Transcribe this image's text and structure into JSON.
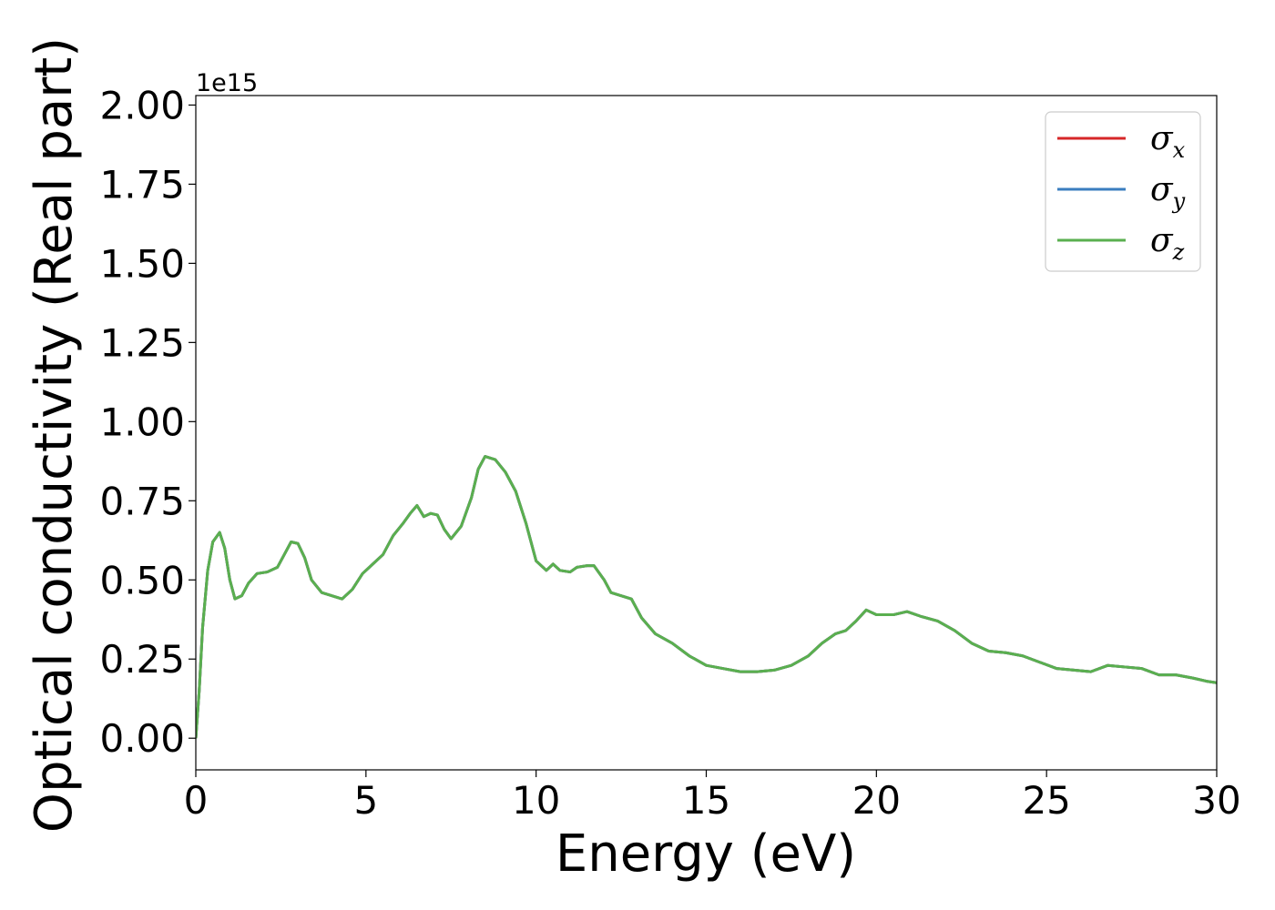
{
  "chart_data": {
    "type": "line",
    "xlabel": "Energy (eV)",
    "ylabel": "Optical conductivity (Real part)",
    "y_offset_label": "1e15",
    "xlim": [
      0,
      30
    ],
    "ylim": [
      -0.1,
      2.03
    ],
    "x_ticks": [
      0,
      5,
      10,
      15,
      20,
      25,
      30
    ],
    "x_tick_labels": [
      "0",
      "5",
      "10",
      "15",
      "20",
      "25",
      "30"
    ],
    "y_ticks": [
      0.0,
      0.25,
      0.5,
      0.75,
      1.0,
      1.25,
      1.5,
      1.75,
      2.0
    ],
    "y_tick_labels": [
      "0.00",
      "0.25",
      "0.50",
      "0.75",
      "1.00",
      "1.25",
      "1.50",
      "1.75",
      "2.00"
    ],
    "grid": false,
    "legend_position": "top-right",
    "series": [
      {
        "name": "σx",
        "label_base": "σ",
        "label_sub": "x",
        "color": "#d62728",
        "x": [
          0.0,
          0.1,
          0.2,
          0.35,
          0.5,
          0.7,
          0.85,
          1.0,
          1.15,
          1.35,
          1.55,
          1.8,
          2.1,
          2.4,
          2.6,
          2.8,
          3.0,
          3.2,
          3.4,
          3.7,
          4.0,
          4.3,
          4.6,
          4.9,
          5.2,
          5.5,
          5.8,
          6.1,
          6.3,
          6.5,
          6.7,
          6.9,
          7.1,
          7.3,
          7.5,
          7.8,
          8.1,
          8.3,
          8.5,
          8.8,
          9.1,
          9.4,
          9.7,
          10.0,
          10.3,
          10.5,
          10.7,
          11.0,
          11.2,
          11.5,
          11.7,
          12.0,
          12.2,
          12.5,
          12.8,
          13.1,
          13.5,
          14.0,
          14.5,
          15.0,
          15.5,
          16.0,
          16.5,
          17.0,
          17.5,
          18.0,
          18.4,
          18.8,
          19.1,
          19.4,
          19.7,
          20.0,
          20.5,
          20.9,
          21.3,
          21.8,
          22.3,
          22.8,
          23.3,
          23.8,
          24.3,
          24.8,
          25.3,
          25.8,
          26.3,
          26.8,
          27.3,
          27.8,
          28.3,
          28.8,
          29.3,
          29.7,
          30.0
        ],
        "values": [
          0.0,
          0.15,
          0.35,
          0.53,
          0.62,
          0.65,
          0.6,
          0.5,
          0.44,
          0.45,
          0.49,
          0.52,
          0.525,
          0.54,
          0.58,
          0.62,
          0.615,
          0.57,
          0.5,
          0.46,
          0.45,
          0.44,
          0.47,
          0.52,
          0.55,
          0.58,
          0.64,
          0.68,
          0.71,
          0.735,
          0.7,
          0.71,
          0.705,
          0.66,
          0.63,
          0.67,
          0.76,
          0.85,
          0.89,
          0.88,
          0.84,
          0.78,
          0.68,
          0.56,
          0.53,
          0.55,
          0.53,
          0.525,
          0.54,
          0.545,
          0.545,
          0.5,
          0.46,
          0.45,
          0.44,
          0.38,
          0.33,
          0.3,
          0.26,
          0.23,
          0.22,
          0.21,
          0.21,
          0.215,
          0.23,
          0.26,
          0.3,
          0.33,
          0.34,
          0.37,
          0.405,
          0.39,
          0.39,
          0.4,
          0.385,
          0.37,
          0.34,
          0.3,
          0.275,
          0.27,
          0.26,
          0.24,
          0.22,
          0.215,
          0.21,
          0.23,
          0.225,
          0.22,
          0.2,
          0.2,
          0.19,
          0.18,
          0.175
        ]
      },
      {
        "name": "σy",
        "label_base": "σ",
        "label_sub": "y",
        "color": "#3a7dbf",
        "x": [
          0.0,
          0.1,
          0.2,
          0.35,
          0.5,
          0.7,
          0.85,
          1.0,
          1.15,
          1.35,
          1.55,
          1.8,
          2.1,
          2.4,
          2.6,
          2.8,
          3.0,
          3.2,
          3.4,
          3.7,
          4.0,
          4.3,
          4.6,
          4.9,
          5.2,
          5.5,
          5.8,
          6.1,
          6.3,
          6.5,
          6.7,
          6.9,
          7.1,
          7.3,
          7.5,
          7.8,
          8.1,
          8.3,
          8.5,
          8.8,
          9.1,
          9.4,
          9.7,
          10.0,
          10.3,
          10.5,
          10.7,
          11.0,
          11.2,
          11.5,
          11.7,
          12.0,
          12.2,
          12.5,
          12.8,
          13.1,
          13.5,
          14.0,
          14.5,
          15.0,
          15.5,
          16.0,
          16.5,
          17.0,
          17.5,
          18.0,
          18.4,
          18.8,
          19.1,
          19.4,
          19.7,
          20.0,
          20.5,
          20.9,
          21.3,
          21.8,
          22.3,
          22.8,
          23.3,
          23.8,
          24.3,
          24.8,
          25.3,
          25.8,
          26.3,
          26.8,
          27.3,
          27.8,
          28.3,
          28.8,
          29.3,
          29.7,
          30.0
        ],
        "values": [
          0.0,
          0.15,
          0.35,
          0.53,
          0.62,
          0.65,
          0.6,
          0.5,
          0.44,
          0.45,
          0.49,
          0.52,
          0.525,
          0.54,
          0.58,
          0.62,
          0.615,
          0.57,
          0.5,
          0.46,
          0.45,
          0.44,
          0.47,
          0.52,
          0.55,
          0.58,
          0.64,
          0.68,
          0.71,
          0.735,
          0.7,
          0.71,
          0.705,
          0.66,
          0.63,
          0.67,
          0.76,
          0.85,
          0.89,
          0.88,
          0.84,
          0.78,
          0.68,
          0.56,
          0.53,
          0.55,
          0.53,
          0.525,
          0.54,
          0.545,
          0.545,
          0.5,
          0.46,
          0.45,
          0.44,
          0.38,
          0.33,
          0.3,
          0.26,
          0.23,
          0.22,
          0.21,
          0.21,
          0.215,
          0.23,
          0.26,
          0.3,
          0.33,
          0.34,
          0.37,
          0.405,
          0.39,
          0.39,
          0.4,
          0.385,
          0.37,
          0.34,
          0.3,
          0.275,
          0.27,
          0.26,
          0.24,
          0.22,
          0.215,
          0.21,
          0.23,
          0.225,
          0.22,
          0.2,
          0.2,
          0.19,
          0.18,
          0.175
        ]
      },
      {
        "name": "σz",
        "label_base": "σ",
        "label_sub": "z",
        "color": "#5aaf4f",
        "x": [
          0.0,
          0.1,
          0.2,
          0.35,
          0.5,
          0.7,
          0.85,
          1.0,
          1.15,
          1.35,
          1.55,
          1.8,
          2.1,
          2.4,
          2.6,
          2.8,
          3.0,
          3.2,
          3.4,
          3.7,
          4.0,
          4.3,
          4.6,
          4.9,
          5.2,
          5.5,
          5.8,
          6.1,
          6.3,
          6.5,
          6.7,
          6.9,
          7.1,
          7.3,
          7.5,
          7.8,
          8.1,
          8.3,
          8.5,
          8.8,
          9.1,
          9.4,
          9.7,
          10.0,
          10.3,
          10.5,
          10.7,
          11.0,
          11.2,
          11.5,
          11.7,
          12.0,
          12.2,
          12.5,
          12.8,
          13.1,
          13.5,
          14.0,
          14.5,
          15.0,
          15.5,
          16.0,
          16.5,
          17.0,
          17.5,
          18.0,
          18.4,
          18.8,
          19.1,
          19.4,
          19.7,
          20.0,
          20.5,
          20.9,
          21.3,
          21.8,
          22.3,
          22.8,
          23.3,
          23.8,
          24.3,
          24.8,
          25.3,
          25.8,
          26.3,
          26.8,
          27.3,
          27.8,
          28.3,
          28.8,
          29.3,
          29.7,
          30.0
        ],
        "values": [
          0.0,
          0.15,
          0.35,
          0.53,
          0.62,
          0.65,
          0.6,
          0.5,
          0.44,
          0.45,
          0.49,
          0.52,
          0.525,
          0.54,
          0.58,
          0.62,
          0.615,
          0.57,
          0.5,
          0.46,
          0.45,
          0.44,
          0.47,
          0.52,
          0.55,
          0.58,
          0.64,
          0.68,
          0.71,
          0.735,
          0.7,
          0.71,
          0.705,
          0.66,
          0.63,
          0.67,
          0.76,
          0.85,
          0.89,
          0.88,
          0.84,
          0.78,
          0.68,
          0.56,
          0.53,
          0.55,
          0.53,
          0.525,
          0.54,
          0.545,
          0.545,
          0.5,
          0.46,
          0.45,
          0.44,
          0.38,
          0.33,
          0.3,
          0.26,
          0.23,
          0.22,
          0.21,
          0.21,
          0.215,
          0.23,
          0.26,
          0.3,
          0.33,
          0.34,
          0.37,
          0.405,
          0.39,
          0.39,
          0.4,
          0.385,
          0.37,
          0.34,
          0.3,
          0.275,
          0.27,
          0.26,
          0.24,
          0.22,
          0.215,
          0.21,
          0.23,
          0.225,
          0.22,
          0.2,
          0.2,
          0.19,
          0.18,
          0.175
        ]
      }
    ]
  }
}
